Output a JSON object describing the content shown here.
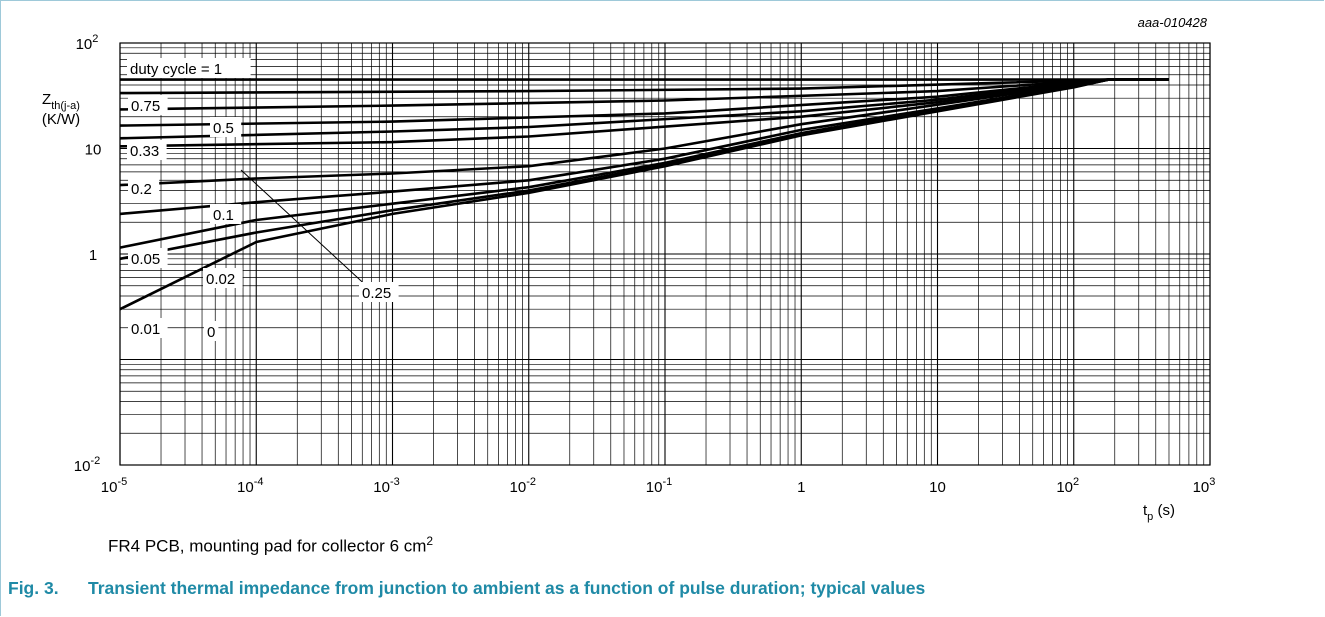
{
  "figure": {
    "code": "aaa-010428",
    "note": "FR4 PCB, mounting pad for collector 6 cm",
    "note_sup": "2",
    "caption_number": "Fig. 3.",
    "caption_text": "Transient thermal impedance from junction to ambient as a function of pulse duration; typical values"
  },
  "colors": {
    "caption": "#1f8aa6",
    "frame": "#9ec9d9",
    "line": "#000000"
  },
  "chart_data": {
    "type": "line",
    "x_scale": "log",
    "y_scale": "log",
    "xlim": [
      1e-05,
      1000
    ],
    "ylim": [
      0.01,
      100
    ],
    "grid": true,
    "ylabel_main": "Z",
    "ylabel_sub": "th(j-a)",
    "ylabel_unit": "(K/W)",
    "xlabel_main": "t",
    "xlabel_sub": "p",
    "xlabel_unit": " (s)",
    "x_ticks": [
      {
        "base": "10",
        "exp": "-5",
        "value": 1e-05
      },
      {
        "base": "10",
        "exp": "-4",
        "value": 0.0001
      },
      {
        "base": "10",
        "exp": "-3",
        "value": 0.001
      },
      {
        "base": "10",
        "exp": "-2",
        "value": 0.01
      },
      {
        "base": "10",
        "exp": "-1",
        "value": 0.1
      },
      {
        "base": "1",
        "exp": "",
        "value": 1
      },
      {
        "base": "10",
        "exp": "",
        "value": 10
      },
      {
        "base": "10",
        "exp": "2",
        "value": 100
      },
      {
        "base": "10",
        "exp": "3",
        "value": 1000
      }
    ],
    "y_ticks": [
      {
        "base": "10",
        "exp": "-2",
        "value": 0.01
      },
      {
        "base": "1",
        "exp": "",
        "value": 1
      },
      {
        "base": "10",
        "exp": "",
        "value": 10
      },
      {
        "base": "10",
        "exp": "2",
        "value": 100
      }
    ],
    "series": [
      {
        "name": "duty cycle = 1",
        "x": [
          1e-05,
          500
        ],
        "y": [
          45,
          45
        ]
      },
      {
        "name": "0.75",
        "x": [
          1e-05,
          0.01,
          1,
          30,
          180,
          500
        ],
        "y": [
          33.5,
          35,
          37,
          42,
          45,
          45
        ]
      },
      {
        "name": "0.5",
        "x": [
          1e-05,
          0.001,
          0.1,
          10,
          100,
          180,
          500
        ],
        "y": [
          23.5,
          25.5,
          28.5,
          35,
          43,
          45,
          45
        ]
      },
      {
        "name": "0.33",
        "x": [
          1e-05,
          0.001,
          0.1,
          10,
          100,
          180,
          500
        ],
        "y": [
          16.5,
          18,
          21.5,
          31,
          42,
          45,
          45
        ]
      },
      {
        "name": "0.25",
        "x": [
          1e-05,
          0.001,
          0.01,
          1,
          10,
          100,
          180,
          500
        ],
        "y": [
          12.5,
          14.5,
          16,
          22.5,
          29,
          41.5,
          45,
          45
        ]
      },
      {
        "name": "0.2",
        "x": [
          1e-05,
          0.001,
          0.01,
          1,
          10,
          100,
          180,
          500
        ],
        "y": [
          10.5,
          11.5,
          13,
          20,
          27.5,
          41,
          45,
          45
        ]
      },
      {
        "name": "0.1",
        "x": [
          1e-05,
          0.0001,
          0.001,
          0.01,
          0.1,
          1,
          10,
          100,
          180,
          500
        ],
        "y": [
          4.5,
          5.2,
          5.8,
          6.8,
          10,
          17,
          26,
          40,
          45,
          45
        ]
      },
      {
        "name": "0.05",
        "x": [
          1e-05,
          0.0001,
          0.001,
          0.01,
          0.1,
          1,
          10,
          100,
          180,
          500
        ],
        "y": [
          2.4,
          3.1,
          3.9,
          5.0,
          8.0,
          15,
          24,
          39,
          45,
          45
        ]
      },
      {
        "name": "0.02",
        "x": [
          1e-05,
          0.0001,
          0.001,
          0.01,
          0.1,
          1,
          10,
          100,
          180,
          500
        ],
        "y": [
          1.15,
          2.1,
          3.0,
          4.3,
          7.3,
          14,
          23.5,
          38.5,
          45,
          45
        ]
      },
      {
        "name": "0.01",
        "x": [
          1e-05,
          0.0001,
          0.001,
          0.01,
          0.1,
          1,
          10,
          100,
          180,
          500
        ],
        "y": [
          0.9,
          1.6,
          2.6,
          4.0,
          7.0,
          13.5,
          23,
          38.5,
          45,
          45
        ]
      },
      {
        "name": "0",
        "x": [
          1e-05,
          0.0001,
          0.001,
          0.01,
          0.1,
          1,
          10,
          100,
          180,
          500
        ],
        "y": [
          0.3,
          1.3,
          2.4,
          3.8,
          6.8,
          13.3,
          22.5,
          38,
          45,
          45
        ]
      }
    ]
  }
}
